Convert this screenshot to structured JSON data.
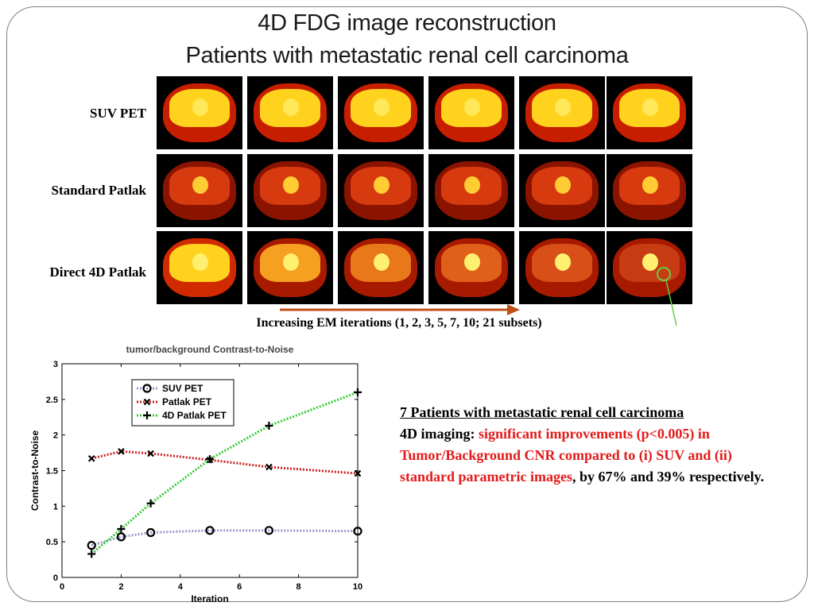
{
  "slide": {
    "title_line1": "4D FDG image reconstruction",
    "title_line2": "Patients with metastatic renal cell carcinoma"
  },
  "image_grid": {
    "rows": [
      {
        "label": "SUV PET"
      },
      {
        "label": "Standard Patlak"
      },
      {
        "label": "Direct 4D Patlak"
      }
    ],
    "caption": "Increasing EM iterations (1, 2, 3, 5, 7, 10; 21 subsets)",
    "arrow_color": "#c0501a",
    "marker_color": "#66cc44"
  },
  "text_block": {
    "heading": "7 Patients with metastatic renal cell carcinoma",
    "intro": "4D imaging: ",
    "highlight": "significant improvements (p<0.005) in Tumor/Background CNR compared to (i) SUV and (ii) standard parametric images",
    "tail": ", by 67% and 39% respectively.",
    "highlight_color": "#e31a1a"
  },
  "chart_data": {
    "type": "line",
    "title": "tumor/background Contrast-to-Noise",
    "xlabel": "Iteration",
    "ylabel": "Contrast-to-Noise",
    "xlim": [
      0,
      10
    ],
    "ylim": [
      0,
      3
    ],
    "xticks": [
      0,
      2,
      4,
      6,
      8,
      10
    ],
    "yticks": [
      0,
      0.5,
      1,
      1.5,
      2,
      2.5,
      3
    ],
    "grid": false,
    "legend_position": "top-left",
    "x": [
      1,
      2,
      3,
      5,
      7,
      10
    ],
    "series": [
      {
        "name": "SUV PET",
        "values": [
          0.45,
          0.57,
          0.63,
          0.66,
          0.66,
          0.65
        ],
        "color": "#9999cc",
        "marker": "circle",
        "style": "dotted"
      },
      {
        "name": "Patlak PET",
        "values": [
          1.67,
          1.77,
          1.74,
          1.65,
          1.55,
          1.46
        ],
        "color": "#cc2222",
        "marker": "x",
        "style": "dotted"
      },
      {
        "name": "4D Patlak PET",
        "values": [
          0.33,
          0.68,
          1.04,
          1.66,
          2.13,
          2.6
        ],
        "color": "#33cc33",
        "marker": "plus",
        "style": "dotted"
      }
    ]
  }
}
